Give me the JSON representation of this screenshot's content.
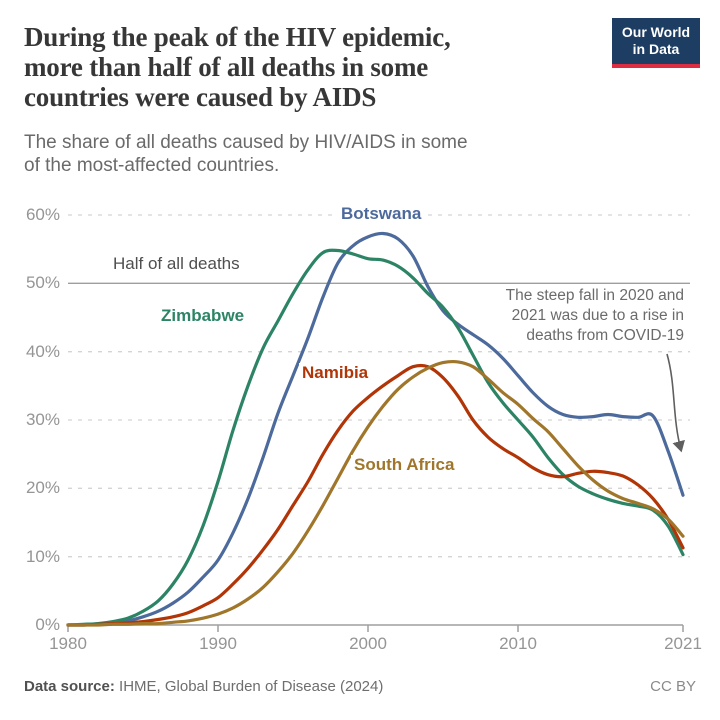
{
  "header": {
    "title_lines": [
      "During the peak of the HIV epidemic,",
      "more than half of all deaths in some",
      "countries were caused by AIDS"
    ],
    "subtitle_lines": [
      "The share of all deaths caused by HIV/AIDS in some",
      "of the most-affected countries."
    ],
    "logo": {
      "line1": "Our World",
      "line2": "in Data",
      "bg_color": "#1d3d63",
      "accent_color": "#dc2d43"
    }
  },
  "chart_data": {
    "type": "line",
    "title": "The share of all deaths caused by HIV/AIDS in some of the most-affected countries",
    "xlabel": "",
    "ylabel": "share of all deaths",
    "x": [
      1980,
      1981,
      1982,
      1983,
      1984,
      1985,
      1986,
      1987,
      1988,
      1989,
      1990,
      1991,
      1992,
      1993,
      1994,
      1995,
      1996,
      1997,
      1998,
      1999,
      2000,
      2001,
      2002,
      2003,
      2004,
      2005,
      2006,
      2007,
      2008,
      2009,
      2010,
      2011,
      2012,
      2013,
      2014,
      2015,
      2016,
      2017,
      2018,
      2019,
      2020,
      2021
    ],
    "series": [
      {
        "name": "Botswana",
        "color": "#4C6A9C",
        "values": [
          0,
          0,
          0.1,
          0.3,
          0.6,
          1.2,
          2,
          3.2,
          4.8,
          7,
          9.5,
          13.5,
          18.5,
          24.5,
          31,
          36.5,
          42,
          48,
          53,
          55.5,
          56.8,
          57.3,
          56.5,
          54,
          49.5,
          46,
          44,
          42.5,
          41,
          39,
          36.5,
          34,
          32,
          30.8,
          30.4,
          30.5,
          30.8,
          30.5,
          30.4,
          30.6,
          25.5,
          19
        ]
      },
      {
        "name": "Zimbabwe",
        "color": "#2C8465",
        "values": [
          0,
          0.1,
          0.2,
          0.5,
          1,
          2,
          3.5,
          6,
          9.5,
          14.5,
          21,
          28.5,
          35,
          40.5,
          44.5,
          48.5,
          52,
          54.5,
          54.8,
          54.3,
          53.6,
          53.4,
          52.5,
          50.8,
          48.5,
          46.5,
          43.5,
          39.5,
          35.5,
          32.5,
          30,
          27.5,
          24.5,
          22,
          20.3,
          19.2,
          18.4,
          17.8,
          17.4,
          16.8,
          14.5,
          10.3
        ]
      },
      {
        "name": "Namibia",
        "color": "#B13507",
        "values": [
          0,
          0,
          0.1,
          0.2,
          0.3,
          0.5,
          0.8,
          1.2,
          1.8,
          2.8,
          4,
          6,
          8.3,
          11,
          14,
          17.5,
          21,
          25,
          28.5,
          31.3,
          33.3,
          35,
          36.5,
          37.8,
          37.8,
          36.2,
          33.5,
          30,
          27.5,
          25.8,
          24.5,
          23,
          22,
          21.7,
          22.2,
          22.5,
          22.3,
          21.8,
          20.5,
          18.5,
          15.5,
          11.3
        ]
      },
      {
        "name": "South Africa",
        "color": "#A0762B",
        "values": [
          0,
          0,
          0,
          0.1,
          0.1,
          0.2,
          0.2,
          0.4,
          0.6,
          1,
          1.6,
          2.5,
          3.8,
          5.5,
          7.8,
          10.5,
          13.8,
          17.5,
          21.5,
          25.5,
          29,
          32,
          34.5,
          36.3,
          37.6,
          38.4,
          38.5,
          37.8,
          36,
          34,
          32.3,
          30.2,
          28.3,
          25.8,
          23.3,
          21.2,
          19.6,
          18.5,
          17.8,
          17,
          15.5,
          13
        ]
      }
    ],
    "ylim": [
      0,
      60
    ],
    "y_ticks": [
      0,
      10,
      20,
      30,
      40,
      50,
      60
    ],
    "y_tick_labels": [
      "0%",
      "10%",
      "20%",
      "30%",
      "40%",
      "50%",
      "60%"
    ],
    "x_ticks": [
      1980,
      1990,
      2000,
      2010,
      2021
    ],
    "x_tick_labels": [
      "1980",
      "1990",
      "2000",
      "2010",
      "2021"
    ],
    "grid": "horizontal-dashed",
    "legend_position": "inline-labels",
    "reference_line": {
      "value": 50,
      "label": "Half of all deaths"
    },
    "annotation": {
      "lines": [
        "The steep fall in 2020 and",
        "2021 was due to a rise in",
        "deaths from COVID-19"
      ]
    }
  },
  "footer": {
    "source_label": "Data source:",
    "source_text": " IHME, Global Burden of Disease (2024)",
    "license": "CC BY"
  }
}
